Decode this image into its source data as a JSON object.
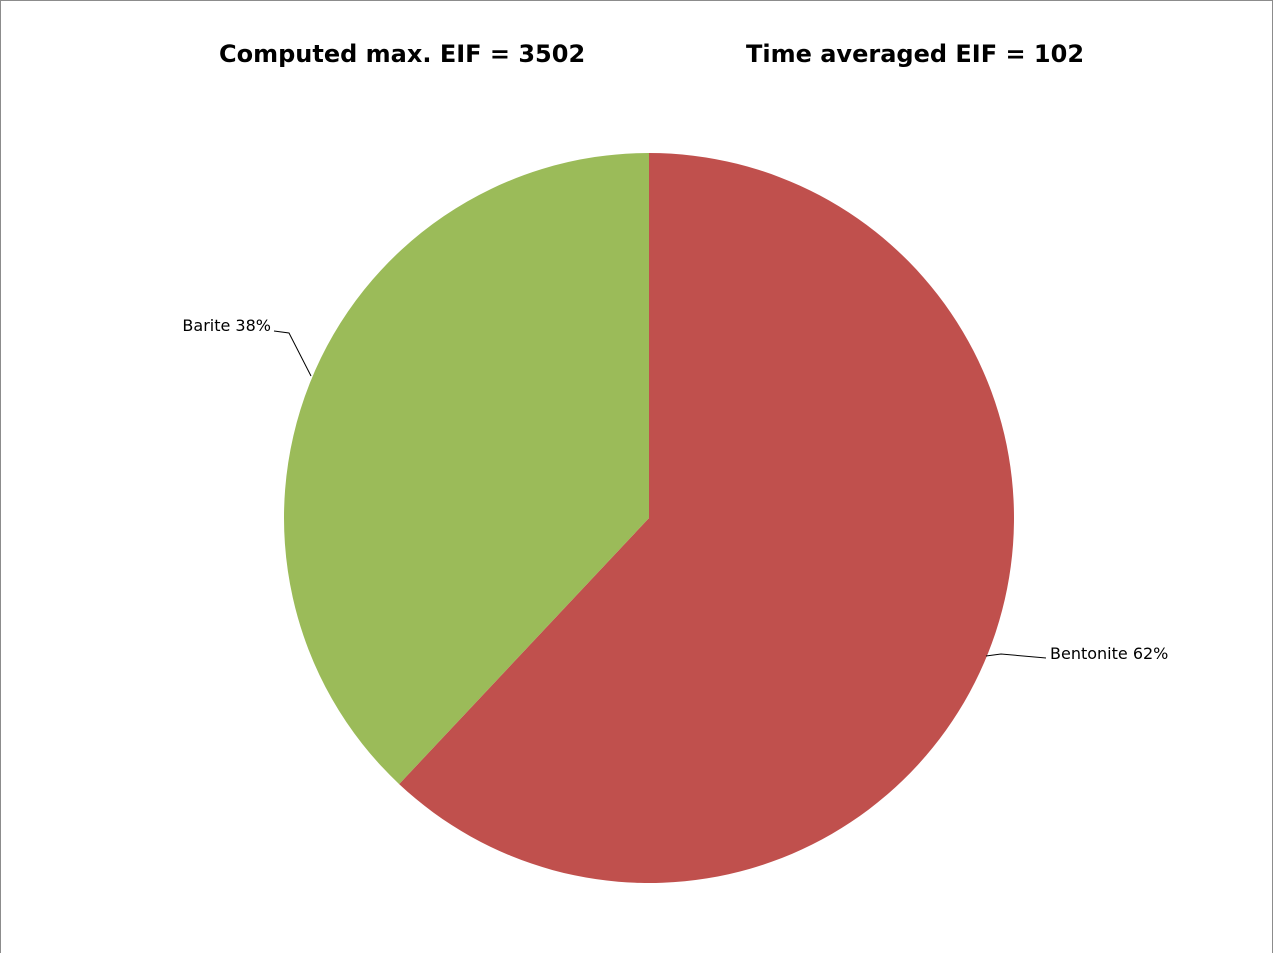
{
  "chart_data": {
    "type": "pie",
    "titles": [
      "Computed max. EIF = 3502",
      "Time averaged EIF = 102"
    ],
    "categories": [
      "Bentonite",
      "Barite"
    ],
    "values": [
      62,
      38
    ],
    "data_labels": [
      "Bentonite 62%",
      "Barite 38%"
    ],
    "colors": [
      "#c0504d",
      "#9bbb59"
    ],
    "start_angle_deg": 0,
    "direction": "clockwise"
  }
}
